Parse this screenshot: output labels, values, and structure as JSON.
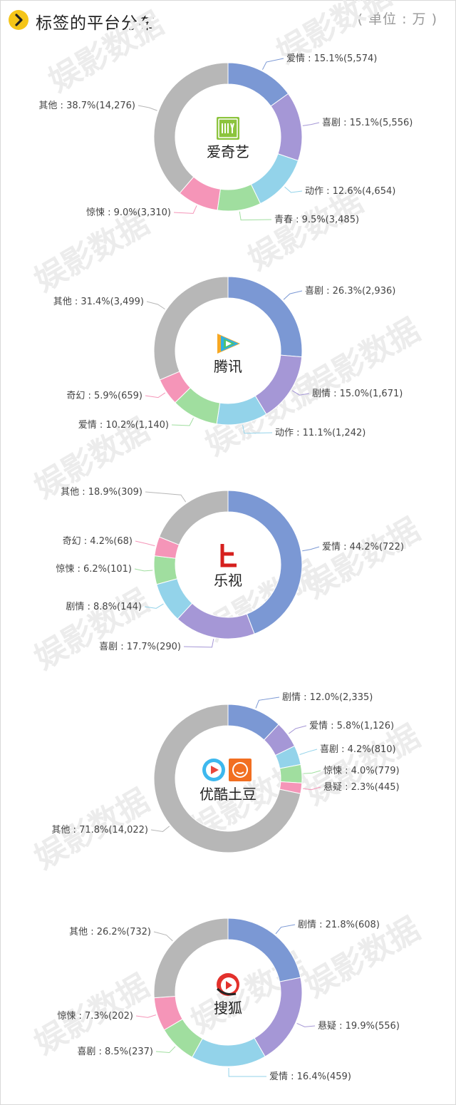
{
  "header": {
    "title": "标签的平台分布",
    "unit": "( 单位 : 万 )"
  },
  "watermark": "娱影数据",
  "colors": {
    "blue": "#7b98d4",
    "purple": "#a597d6",
    "cyan": "#93d3ea",
    "green": "#a0de9f",
    "pink": "#f595b8",
    "grey": "#b7b7b7",
    "accent": "#f5c518"
  },
  "chart_data": [
    {
      "type": "pie",
      "center_label": "爱奇艺",
      "icon": "iqiyi-logo-icon",
      "slices": [
        {
          "name": "爱情",
          "percent": 15.1,
          "value": 5574,
          "label": "爱情 : 15.1%(5,574)",
          "color": "blue"
        },
        {
          "name": "喜剧",
          "percent": 15.1,
          "value": 5556,
          "label": "喜剧 : 15.1%(5,556)",
          "color": "purple"
        },
        {
          "name": "动作",
          "percent": 12.6,
          "value": 4654,
          "label": "动作 : 12.6%(4,654)",
          "color": "cyan"
        },
        {
          "name": "青春",
          "percent": 9.5,
          "value": 3485,
          "label": "青春 : 9.5%(3,485)",
          "color": "green"
        },
        {
          "name": "惊悚",
          "percent": 9.0,
          "value": 3310,
          "label": "惊悚 : 9.0%(3,310)",
          "color": "pink"
        },
        {
          "name": "其他",
          "percent": 38.7,
          "value": 14276,
          "label": "其他 : 38.7%(14,276)",
          "color": "grey"
        }
      ]
    },
    {
      "type": "pie",
      "center_label": "腾讯",
      "icon": "tencent-video-logo-icon",
      "slices": [
        {
          "name": "喜剧",
          "percent": 26.3,
          "value": 2936,
          "label": "喜剧 : 26.3%(2,936)",
          "color": "blue"
        },
        {
          "name": "剧情",
          "percent": 15.0,
          "value": 1671,
          "label": "剧情 : 15.0%(1,671)",
          "color": "purple"
        },
        {
          "name": "动作",
          "percent": 11.1,
          "value": 1242,
          "label": "动作 : 11.1%(1,242)",
          "color": "cyan"
        },
        {
          "name": "爱情",
          "percent": 10.2,
          "value": 1140,
          "label": "爱情 : 10.2%(1,140)",
          "color": "green"
        },
        {
          "name": "奇幻",
          "percent": 5.9,
          "value": 659,
          "label": "奇幻 : 5.9%(659)",
          "color": "pink"
        },
        {
          "name": "其他",
          "percent": 31.4,
          "value": 3499,
          "label": "其他 : 31.4%(3,499)",
          "color": "grey"
        }
      ]
    },
    {
      "type": "pie",
      "center_label": "乐视",
      "icon": "letv-logo-icon",
      "slices": [
        {
          "name": "爱情",
          "percent": 44.2,
          "value": 722,
          "label": "爱情 : 44.2%(722)",
          "color": "blue"
        },
        {
          "name": "喜剧",
          "percent": 17.7,
          "value": 290,
          "label": "喜剧 : 17.7%(290)",
          "color": "purple"
        },
        {
          "name": "剧情",
          "percent": 8.8,
          "value": 144,
          "label": "剧情 : 8.8%(144)",
          "color": "cyan"
        },
        {
          "name": "惊悚",
          "percent": 6.2,
          "value": 101,
          "label": "惊悚 : 6.2%(101)",
          "color": "green"
        },
        {
          "name": "奇幻",
          "percent": 4.2,
          "value": 68,
          "label": "奇幻 : 4.2%(68)",
          "color": "pink"
        },
        {
          "name": "其他",
          "percent": 18.9,
          "value": 309,
          "label": "其他 : 18.9%(309)",
          "color": "grey"
        }
      ]
    },
    {
      "type": "pie",
      "center_label": "优酷土豆",
      "icon": "youku-tudou-logo-icon",
      "slices": [
        {
          "name": "剧情",
          "percent": 12.0,
          "value": 2335,
          "label": "剧情 : 12.0%(2,335)",
          "color": "blue"
        },
        {
          "name": "爱情",
          "percent": 5.8,
          "value": 1126,
          "label": "爱情 : 5.8%(1,126)",
          "color": "purple"
        },
        {
          "name": "喜剧",
          "percent": 4.2,
          "value": 810,
          "label": "喜剧 : 4.2%(810)",
          "color": "cyan"
        },
        {
          "name": "惊悚",
          "percent": 4.0,
          "value": 779,
          "label": "惊悚 : 4.0%(779)",
          "color": "green"
        },
        {
          "name": "悬疑",
          "percent": 2.3,
          "value": 445,
          "label": "悬疑 : 2.3%(445)",
          "color": "pink"
        },
        {
          "name": "其他",
          "percent": 71.8,
          "value": 14022,
          "label": "其他 : 71.8%(14,022)",
          "color": "grey"
        }
      ]
    },
    {
      "type": "pie",
      "center_label": "搜狐",
      "icon": "sohu-video-logo-icon",
      "slices": [
        {
          "name": "剧情",
          "percent": 21.8,
          "value": 608,
          "label": "剧情 : 21.8%(608)",
          "color": "blue"
        },
        {
          "name": "悬疑",
          "percent": 19.9,
          "value": 556,
          "label": "悬疑 : 19.9%(556)",
          "color": "purple"
        },
        {
          "name": "爱情",
          "percent": 16.4,
          "value": 459,
          "label": "爱情 : 16.4%(459)",
          "color": "cyan"
        },
        {
          "name": "喜剧",
          "percent": 8.5,
          "value": 237,
          "label": "喜剧 : 8.5%(237)",
          "color": "green"
        },
        {
          "name": "惊悚",
          "percent": 7.3,
          "value": 202,
          "label": "惊悚 : 7.3%(202)",
          "color": "pink"
        },
        {
          "name": "其他",
          "percent": 26.2,
          "value": 732,
          "label": "其他 : 26.2%(732)",
          "color": "grey"
        }
      ]
    }
  ]
}
